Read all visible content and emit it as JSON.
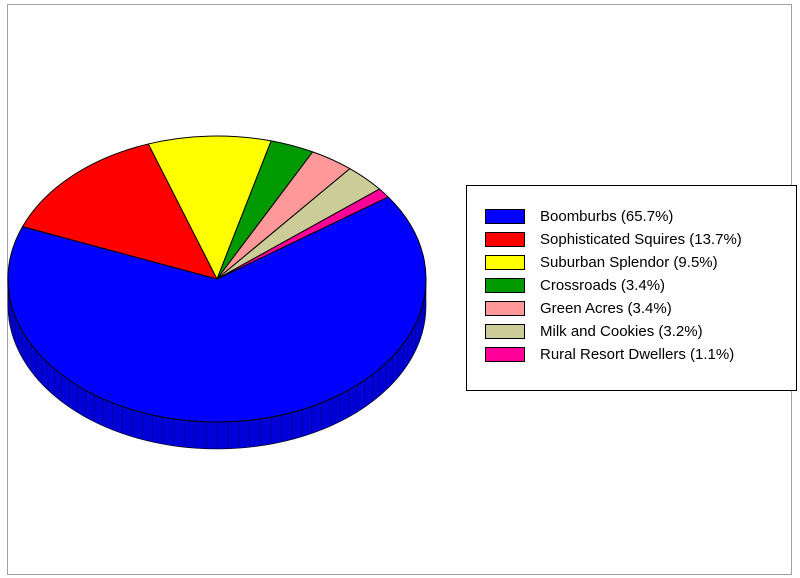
{
  "chart_data": {
    "type": "pie",
    "title": "",
    "legend_position": "right",
    "slices": [
      {
        "label": "Boomburbs (65.7%)",
        "value": 65.7,
        "color": "#0000ff"
      },
      {
        "label": "Sophisticated Squires (13.7%)",
        "value": 13.7,
        "color": "#ff0000"
      },
      {
        "label": "Suburban Splendor (9.5%)",
        "value": 9.5,
        "color": "#ffff00"
      },
      {
        "label": "Crossroads (3.4%)",
        "value": 3.4,
        "color": "#009900"
      },
      {
        "label": "Green Acres (3.4%)",
        "value": 3.4,
        "color": "#ff9999"
      },
      {
        "label": "Milk and Cookies (3.2%)",
        "value": 3.2,
        "color": "#cccc99"
      },
      {
        "label": "Rural Resort Dwellers (1.1%)",
        "value": 1.1,
        "color": "#ff0099"
      }
    ]
  }
}
